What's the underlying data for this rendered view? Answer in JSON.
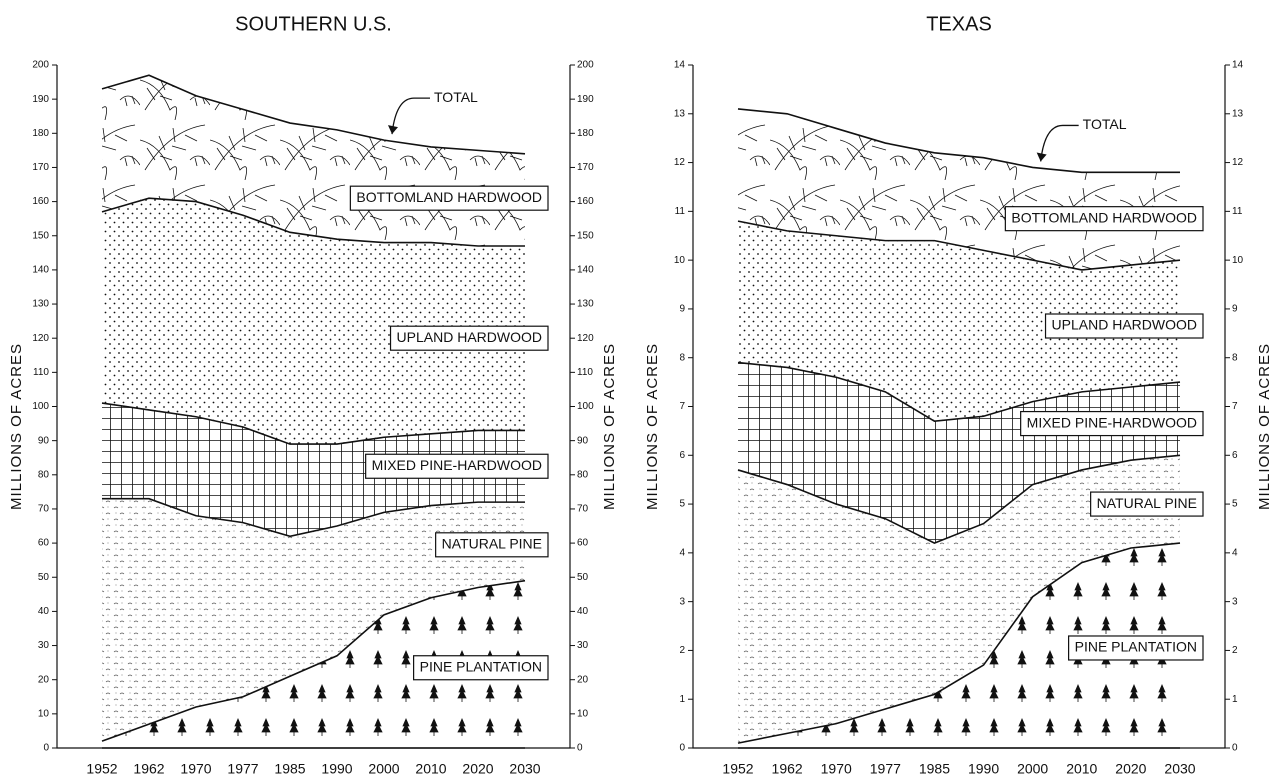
{
  "chart_data": [
    {
      "type": "stacked_area",
      "title": "SOUTHERN U.S.",
      "y_label": "MILLIONS OF ACRES",
      "y2_label": "MILLIONS OF ACRES",
      "annotation": "TOTAL",
      "categories": [
        "1952",
        "1962",
        "1970",
        "1977",
        "1985",
        "1990",
        "2000",
        "2010",
        "2020",
        "2030"
      ],
      "series": [
        {
          "name": "PINE PLANTATION",
          "values": [
            2,
            7,
            12,
            15,
            21,
            27,
            39,
            44,
            47,
            49
          ]
        },
        {
          "name": "NATURAL PINE",
          "values": [
            71,
            66,
            56,
            51,
            41,
            38,
            30,
            27,
            25,
            23
          ]
        },
        {
          "name": "MIXED PINE-HARDWOOD",
          "values": [
            28,
            26,
            29,
            28,
            27,
            24,
            22,
            21,
            21,
            21
          ]
        },
        {
          "name": "UPLAND HARDWOOD",
          "values": [
            56,
            62,
            63,
            62,
            62,
            60,
            57,
            56,
            54,
            54
          ]
        },
        {
          "name": "BOTTOMLAND HARDWOOD",
          "values": [
            36,
            36,
            31,
            31,
            32,
            32,
            30,
            28,
            28,
            27
          ]
        }
      ],
      "ylim": [
        0,
        200
      ],
      "yticks": [
        0,
        10,
        20,
        30,
        40,
        50,
        60,
        70,
        80,
        90,
        100,
        110,
        120,
        130,
        140,
        150,
        160,
        170,
        180,
        190,
        200
      ],
      "y2lim": [
        0,
        200
      ],
      "y2ticks": [
        0,
        10,
        20,
        30,
        40,
        50,
        60,
        70,
        80,
        90,
        100,
        110,
        120,
        130,
        140,
        150,
        160,
        170,
        180,
        190,
        200
      ]
    },
    {
      "type": "stacked_area",
      "title": "TEXAS",
      "y_label": "MILLIONS OF ACRES",
      "y2_label": "MILLIONS OF ACRES",
      "annotation": "TOTAL",
      "categories": [
        "1952",
        "1962",
        "1970",
        "1977",
        "1985",
        "1990",
        "2000",
        "2010",
        "2020",
        "2030"
      ],
      "series": [
        {
          "name": "PINE PLANTATION",
          "values": [
            0.1,
            0.3,
            0.5,
            0.8,
            1.1,
            1.7,
            3.1,
            3.8,
            4.1,
            4.2
          ]
        },
        {
          "name": "NATURAL PINE",
          "values": [
            5.6,
            5.1,
            4.5,
            3.9,
            3.1,
            2.9,
            2.3,
            1.9,
            1.8,
            1.8
          ]
        },
        {
          "name": "MIXED PINE-HARDWOOD",
          "values": [
            2.2,
            2.4,
            2.6,
            2.6,
            2.5,
            2.2,
            1.7,
            1.6,
            1.5,
            1.5
          ]
        },
        {
          "name": "UPLAND HARDWOOD",
          "values": [
            2.9,
            2.8,
            2.9,
            3.1,
            3.7,
            3.4,
            2.9,
            2.5,
            2.5,
            2.5
          ]
        },
        {
          "name": "BOTTOMLAND HARDWOOD",
          "values": [
            2.3,
            2.4,
            2.2,
            2.0,
            1.8,
            1.9,
            1.9,
            2.0,
            1.9,
            1.8
          ]
        }
      ],
      "ylim": [
        0,
        14
      ],
      "yticks": [
        0,
        1,
        2,
        3,
        4,
        5,
        6,
        7,
        8,
        9,
        10,
        11,
        12,
        13,
        14
      ],
      "y2lim": [
        0,
        14
      ],
      "y2ticks": [
        0,
        1,
        2,
        3,
        4,
        5,
        6,
        7,
        8,
        9,
        10,
        11,
        12,
        13,
        14
      ]
    }
  ]
}
